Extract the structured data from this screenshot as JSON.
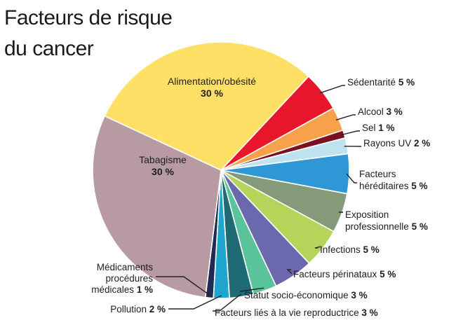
{
  "title_lines": [
    "Facteurs de risque",
    "du cancer"
  ],
  "chart_data": {
    "type": "pie",
    "title": "Facteurs de risque du cancer",
    "unit": "%",
    "slices": [
      {
        "label": [
          "Alimentation/obésité"
        ],
        "value": 30,
        "value_label": "30 %",
        "color": "#FFE066"
      },
      {
        "label": [
          "Sédentarité"
        ],
        "value": 5,
        "value_label": "5 %",
        "color": "#E8162B"
      },
      {
        "label": [
          "Alcool"
        ],
        "value": 3,
        "value_label": "3 %",
        "color": "#F7A14A"
      },
      {
        "label": [
          "Sel"
        ],
        "value": 1,
        "value_label": "1 %",
        "color": "#7A1020"
      },
      {
        "label": [
          "Rayons UV"
        ],
        "value": 2,
        "value_label": "2 %",
        "color": "#BFE3EE"
      },
      {
        "label": [
          "Facteurs",
          "héréditaires"
        ],
        "value": 5,
        "value_label": "5 %",
        "color": "#2E97D6"
      },
      {
        "label": [
          "Exposition",
          "professionnelle"
        ],
        "value": 5,
        "value_label": "5 %",
        "color": "#849A78"
      },
      {
        "label": [
          "Infections"
        ],
        "value": 5,
        "value_label": "5 %",
        "color": "#B4D45A"
      },
      {
        "label": [
          "Facteurs périnataux"
        ],
        "value": 5,
        "value_label": "5 %",
        "color": "#6B68AE"
      },
      {
        "label": [
          "Statut socio-économique"
        ],
        "value": 3,
        "value_label": "3 %",
        "color": "#59C39C"
      },
      {
        "label": [
          "Facteurs liés à la vie reproductrice"
        ],
        "value": 3,
        "value_label": "3 %",
        "color": "#1E6B74"
      },
      {
        "label": [
          "Pollution"
        ],
        "value": 2,
        "value_label": "2 %",
        "color": "#1FA6CE"
      },
      {
        "label": [
          "Médicaments",
          "procédures",
          "médicales"
        ],
        "value": 1,
        "value_label": "1 %",
        "color": "#1F2A55"
      },
      {
        "label": [
          "Tabagisme"
        ],
        "value": 30,
        "value_label": "30 %",
        "color": "#B79AA2"
      }
    ]
  }
}
